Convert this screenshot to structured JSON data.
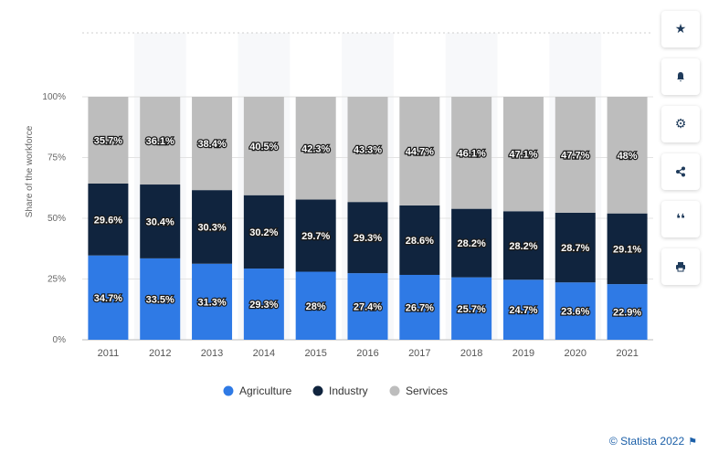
{
  "chart_data": {
    "type": "bar",
    "stacked": true,
    "categories": [
      "2011",
      "2012",
      "2013",
      "2014",
      "2015",
      "2016",
      "2017",
      "2018",
      "2019",
      "2020",
      "2021"
    ],
    "series": [
      {
        "name": "Agriculture",
        "color": "#2f7ae5",
        "values": [
          34.7,
          33.5,
          31.3,
          29.3,
          28,
          27.4,
          26.7,
          25.7,
          24.7,
          23.6,
          22.9
        ],
        "labels": [
          "34.7%",
          "33.5%",
          "31.3%",
          "29.3%",
          "28%",
          "27.4%",
          "26.7%",
          "25.7%",
          "24.7%",
          "23.6%",
          "22.9%"
        ]
      },
      {
        "name": "Industry",
        "color": "#10243e",
        "values": [
          29.6,
          30.4,
          30.3,
          30.2,
          29.7,
          29.3,
          28.6,
          28.2,
          28.2,
          28.7,
          29.1
        ],
        "labels": [
          "29.6%",
          "30.4%",
          "30.3%",
          "30.2%",
          "29.7%",
          "29.3%",
          "28.6%",
          "28.2%",
          "28.2%",
          "28.7%",
          "29.1%"
        ]
      },
      {
        "name": "Services",
        "color": "#bdbdbd",
        "values": [
          35.7,
          36.1,
          38.4,
          40.5,
          42.3,
          43.3,
          44.7,
          46.1,
          47.1,
          47.7,
          48
        ],
        "labels": [
          "35.7%",
          "36.1%",
          "38.4%",
          "40.5%",
          "42.3%",
          "43.3%",
          "44.7%",
          "46.1%",
          "47.1%",
          "47.7%",
          "48%"
        ]
      }
    ],
    "ylabel": "Share of the workforce",
    "yticks": [
      "0%",
      "25%",
      "50%",
      "75%",
      "100%"
    ],
    "ytick_values": [
      0,
      25,
      50,
      75,
      100
    ],
    "ylim": [
      0,
      100
    ],
    "grid": true,
    "legend_position": "bottom-center"
  },
  "toolbar": {
    "icons": [
      "star-icon",
      "bell-icon",
      "gear-icon",
      "share-icon",
      "quote-icon",
      "print-icon"
    ]
  },
  "credit": "© Statista 2022"
}
